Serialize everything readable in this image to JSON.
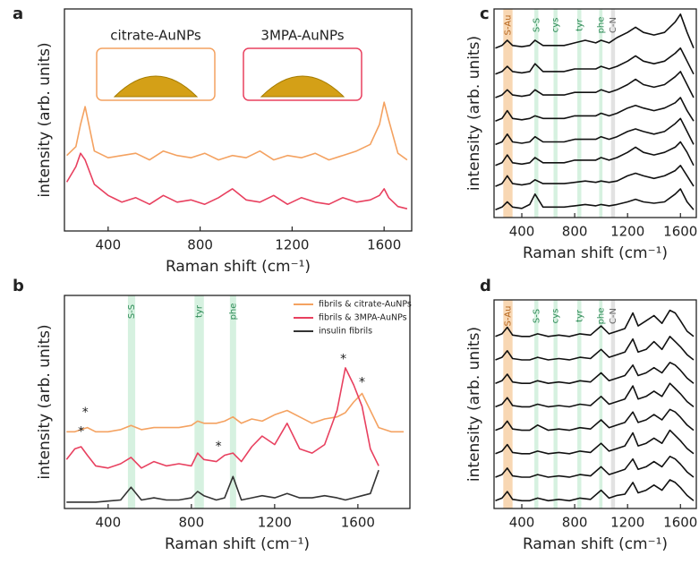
{
  "chart_data": [
    {
      "type": "line",
      "panel": "a",
      "xlabel": "Raman shift (cm⁻¹)",
      "ylabel": "intensity (arb. units)",
      "xlim": [
        210,
        1720
      ],
      "ylim": [
        0,
        10
      ],
      "xticks": [
        400,
        800,
        1200,
        1600
      ],
      "x": [
        220,
        260,
        280,
        300,
        340,
        400,
        460,
        520,
        580,
        640,
        700,
        760,
        820,
        880,
        940,
        1000,
        1060,
        1120,
        1180,
        1240,
        1300,
        1360,
        1420,
        1480,
        1540,
        1580,
        1600,
        1620,
        1660,
        1700
      ],
      "series": [
        {
          "color": "#f4a261",
          "values": [
            3.4,
            3.8,
            4.8,
            5.6,
            3.6,
            3.3,
            3.4,
            3.5,
            3.2,
            3.6,
            3.4,
            3.3,
            3.5,
            3.2,
            3.4,
            3.3,
            3.6,
            3.2,
            3.4,
            3.3,
            3.5,
            3.2,
            3.4,
            3.6,
            3.9,
            4.8,
            5.8,
            5.0,
            3.5,
            3.2
          ]
        },
        {
          "color": "#e8405f",
          "values": [
            2.2,
            2.9,
            3.5,
            3.2,
            2.1,
            1.6,
            1.3,
            1.5,
            1.2,
            1.6,
            1.3,
            1.4,
            1.2,
            1.5,
            1.9,
            1.4,
            1.3,
            1.6,
            1.2,
            1.5,
            1.3,
            1.2,
            1.5,
            1.3,
            1.4,
            1.6,
            1.9,
            1.5,
            1.1,
            1.0
          ]
        }
      ],
      "insets": [
        {
          "label": "citrate-AuNPs",
          "color": "#f4a261"
        },
        {
          "label": "3MPA-AuNPs",
          "color": "#e8405f"
        }
      ]
    },
    {
      "type": "line",
      "panel": "b",
      "xlabel": "Raman shift (cm⁻¹)",
      "ylabel": "intensity (arb. units)",
      "xlim": [
        190,
        1850
      ],
      "ylim": [
        0,
        10
      ],
      "xticks": [
        400,
        800,
        1200,
        1600
      ],
      "legend": "upper right",
      "bands": [
        {
          "label": "S-S",
          "x": [
            495,
            530
          ],
          "color": "#c8ecd6",
          "label_color": "#2e8b57"
        },
        {
          "label": "tyr",
          "x": [
            815,
            860
          ],
          "color": "#c8ecd6",
          "label_color": "#2e8b57"
        },
        {
          "label": "phe",
          "x": [
            985,
            1015
          ],
          "color": "#c8ecd6",
          "label_color": "#2e8b57"
        }
      ],
      "x": [
        200,
        240,
        270,
        300,
        340,
        400,
        460,
        510,
        560,
        620,
        680,
        740,
        800,
        830,
        860,
        920,
        960,
        1000,
        1040,
        1090,
        1140,
        1200,
        1260,
        1320,
        1380,
        1440,
        1500,
        1540,
        1580,
        1620,
        1660,
        1700,
        1760,
        1820
      ],
      "series": [
        {
          "name": "fibrils & citrate-AuNPs",
          "color": "#f4a261",
          "values": [
            3.6,
            3.6,
            3.7,
            3.8,
            3.6,
            3.6,
            3.7,
            3.9,
            3.7,
            3.8,
            3.8,
            3.8,
            3.9,
            4.1,
            4.0,
            4.0,
            4.1,
            4.3,
            4.0,
            4.2,
            4.1,
            4.4,
            4.6,
            4.3,
            4.0,
            4.2,
            4.3,
            4.5,
            5.0,
            5.4,
            4.6,
            3.8,
            3.6,
            3.6
          ]
        },
        {
          "name": "fibrils & 3MPA-AuNPs",
          "color": "#e8405f",
          "values": [
            2.3,
            2.8,
            2.9,
            2.5,
            2.0,
            1.9,
            2.1,
            2.4,
            1.9,
            2.2,
            2.0,
            2.1,
            2.0,
            2.6,
            2.3,
            2.2,
            2.5,
            2.6,
            2.2,
            2.9,
            3.4,
            3.0,
            4.0,
            2.8,
            2.6,
            3.0,
            4.6,
            6.6,
            5.8,
            4.8,
            2.8,
            2.0,
            null,
            null
          ]
        },
        {
          "name": "insulin fibrils",
          "color": "#333333",
          "values": [
            0.3,
            0.3,
            0.3,
            0.3,
            0.3,
            0.35,
            0.4,
            1.0,
            0.4,
            0.5,
            0.4,
            0.4,
            0.5,
            0.8,
            0.6,
            0.4,
            0.5,
            1.5,
            0.4,
            0.5,
            0.6,
            0.5,
            0.7,
            0.5,
            0.5,
            0.6,
            0.5,
            0.4,
            0.5,
            0.6,
            0.7,
            1.8,
            null,
            null
          ]
        }
      ],
      "annotations": [
        {
          "text": "*",
          "x": 290,
          "y": 4.5
        },
        {
          "text": "*",
          "x": 270,
          "y": 3.6
        },
        {
          "text": "*",
          "x": 930,
          "y": 2.9
        },
        {
          "text": "*",
          "x": 1530,
          "y": 7.0
        },
        {
          "text": "*",
          "x": 1620,
          "y": 5.9
        }
      ]
    },
    {
      "type": "line",
      "panel": "c",
      "xlabel": "Raman shift (cm⁻¹)",
      "ylabel": "intensity (arb. units)",
      "xlim": [
        190,
        1720
      ],
      "ylim": [
        0,
        8
      ],
      "xticks": [
        400,
        800,
        1200,
        1600
      ],
      "bands": [
        {
          "label": "S-Au",
          "x": [
            260,
            330
          ],
          "color": "#f6c99a",
          "label_color": "#b5651d"
        },
        {
          "label": "S-S",
          "x": [
            495,
            525
          ],
          "color": "#c8ecd6",
          "label_color": "#2e8b57"
        },
        {
          "label": "cys",
          "x": [
            640,
            670
          ],
          "color": "#c8ecd6",
          "label_color": "#2e8b57"
        },
        {
          "label": "tyr",
          "x": [
            820,
            850
          ],
          "color": "#c8ecd6",
          "label_color": "#2e8b57"
        },
        {
          "label": "phe",
          "x": [
            985,
            1010
          ],
          "color": "#c8ecd6",
          "label_color": "#2e8b57"
        },
        {
          "label": "C-N",
          "x": [
            1075,
            1105
          ],
          "color": "#d8d8d8",
          "label_color": "#666666"
        }
      ],
      "x": [
        200,
        250,
        290,
        330,
        400,
        460,
        500,
        560,
        640,
        720,
        800,
        880,
        960,
        1000,
        1060,
        1120,
        1200,
        1260,
        1320,
        1400,
        1480,
        1560,
        1600,
        1650,
        1700
      ],
      "series": [
        {
          "color": "#111111",
          "values": [
            0.3,
            0.4,
            0.6,
            0.4,
            0.35,
            0.5,
            0.9,
            0.4,
            0.4,
            0.4,
            0.45,
            0.5,
            0.45,
            0.5,
            0.45,
            0.5,
            0.6,
            0.7,
            0.6,
            0.55,
            0.6,
            0.9,
            1.1,
            0.6,
            0.3
          ]
        },
        {
          "color": "#111111",
          "values": [
            1.2,
            1.3,
            1.6,
            1.3,
            1.25,
            1.3,
            1.45,
            1.3,
            1.3,
            1.3,
            1.35,
            1.4,
            1.35,
            1.4,
            1.35,
            1.4,
            1.6,
            1.7,
            1.6,
            1.5,
            1.6,
            1.8,
            2.0,
            1.6,
            1.2
          ]
        },
        {
          "color": "#111111",
          "values": [
            2.0,
            2.1,
            2.4,
            2.1,
            2.05,
            2.1,
            2.3,
            2.1,
            2.1,
            2.1,
            2.2,
            2.2,
            2.2,
            2.3,
            2.2,
            2.3,
            2.5,
            2.7,
            2.5,
            2.4,
            2.5,
            2.7,
            2.9,
            2.5,
            2.0
          ]
        },
        {
          "color": "#111111",
          "values": [
            2.8,
            2.9,
            3.2,
            2.9,
            2.85,
            2.9,
            3.1,
            2.9,
            2.9,
            2.9,
            3.0,
            3.0,
            3.0,
            3.1,
            3.0,
            3.1,
            3.3,
            3.4,
            3.3,
            3.2,
            3.3,
            3.6,
            3.8,
            3.3,
            2.8
          ]
        },
        {
          "color": "#111111",
          "values": [
            3.7,
            3.8,
            4.1,
            3.8,
            3.75,
            3.8,
            3.9,
            3.8,
            3.8,
            3.8,
            3.9,
            3.9,
            3.9,
            4.0,
            3.9,
            4.0,
            4.2,
            4.3,
            4.2,
            4.1,
            4.2,
            4.4,
            4.6,
            4.1,
            3.7
          ]
        },
        {
          "color": "#111111",
          "values": [
            4.6,
            4.7,
            4.9,
            4.7,
            4.65,
            4.7,
            4.9,
            4.7,
            4.7,
            4.7,
            4.8,
            4.8,
            4.8,
            4.9,
            4.8,
            4.9,
            5.1,
            5.3,
            5.1,
            5.0,
            5.1,
            5.4,
            5.6,
            5.1,
            4.6
          ]
        },
        {
          "color": "#111111",
          "values": [
            5.5,
            5.6,
            5.8,
            5.6,
            5.55,
            5.6,
            5.9,
            5.6,
            5.6,
            5.6,
            5.7,
            5.7,
            5.7,
            5.8,
            5.7,
            5.8,
            6.0,
            6.2,
            6.0,
            5.9,
            6.0,
            6.3,
            6.5,
            6.0,
            5.5
          ]
        },
        {
          "color": "#111111",
          "values": [
            6.5,
            6.6,
            6.8,
            6.6,
            6.55,
            6.6,
            6.8,
            6.6,
            6.6,
            6.6,
            6.7,
            6.8,
            6.7,
            6.8,
            6.7,
            6.9,
            7.1,
            7.3,
            7.1,
            7.0,
            7.1,
            7.5,
            7.8,
            7.1,
            6.5
          ]
        }
      ]
    },
    {
      "type": "line",
      "panel": "d",
      "xlabel": "Raman shift (cm⁻¹)",
      "ylabel": "intensity (arb. units)",
      "xlim": [
        190,
        1720
      ],
      "ylim": [
        0,
        8
      ],
      "xticks": [
        400,
        800,
        1200,
        1600
      ],
      "bands": [
        {
          "label": "S-Au",
          "x": [
            260,
            330
          ],
          "color": "#f6c99a",
          "label_color": "#b5651d"
        },
        {
          "label": "S-S",
          "x": [
            495,
            525
          ],
          "color": "#c8ecd6",
          "label_color": "#2e8b57"
        },
        {
          "label": "cys",
          "x": [
            640,
            670
          ],
          "color": "#c8ecd6",
          "label_color": "#2e8b57"
        },
        {
          "label": "tyr",
          "x": [
            820,
            850
          ],
          "color": "#c8ecd6",
          "label_color": "#2e8b57"
        },
        {
          "label": "phe",
          "x": [
            985,
            1010
          ],
          "color": "#c8ecd6",
          "label_color": "#2e8b57"
        },
        {
          "label": "C-N",
          "x": [
            1075,
            1105
          ],
          "color": "#d8d8d8",
          "label_color": "#666666"
        }
      ],
      "x": [
        200,
        250,
        290,
        330,
        400,
        460,
        520,
        600,
        680,
        760,
        840,
        920,
        1000,
        1060,
        1120,
        1180,
        1240,
        1280,
        1340,
        1400,
        1460,
        1520,
        1560,
        1600,
        1650,
        1700
      ],
      "series": [
        {
          "color": "#111111",
          "values": [
            0.3,
            0.4,
            0.65,
            0.35,
            0.3,
            0.3,
            0.4,
            0.3,
            0.35,
            0.3,
            0.4,
            0.35,
            0.7,
            0.4,
            0.5,
            0.55,
            1.0,
            0.6,
            0.7,
            0.9,
            0.7,
            1.1,
            1.0,
            0.8,
            0.5,
            0.3
          ]
        },
        {
          "color": "#111111",
          "values": [
            1.2,
            1.3,
            1.55,
            1.25,
            1.2,
            1.2,
            1.3,
            1.2,
            1.25,
            1.2,
            1.3,
            1.25,
            1.6,
            1.3,
            1.4,
            1.5,
            1.9,
            1.5,
            1.6,
            1.8,
            1.6,
            2.0,
            1.9,
            1.7,
            1.4,
            1.2
          ]
        },
        {
          "color": "#111111",
          "values": [
            2.1,
            2.2,
            2.45,
            2.15,
            2.1,
            2.1,
            2.2,
            2.1,
            2.15,
            2.1,
            2.2,
            2.15,
            2.5,
            2.2,
            2.3,
            2.4,
            2.9,
            2.4,
            2.5,
            2.7,
            2.5,
            3.0,
            2.8,
            2.6,
            2.3,
            2.1
          ]
        },
        {
          "color": "#111111",
          "values": [
            3.0,
            3.1,
            3.35,
            3.05,
            3.0,
            3.0,
            3.2,
            3.0,
            3.05,
            3.0,
            3.1,
            3.05,
            3.4,
            3.1,
            3.2,
            3.3,
            3.7,
            3.3,
            3.4,
            3.6,
            3.4,
            3.8,
            3.7,
            3.5,
            3.2,
            3.0
          ]
        },
        {
          "color": "#111111",
          "values": [
            3.9,
            4.0,
            4.25,
            3.95,
            3.9,
            3.9,
            4.0,
            3.9,
            3.95,
            3.9,
            4.0,
            3.95,
            4.3,
            4.0,
            4.1,
            4.2,
            4.7,
            4.2,
            4.3,
            4.5,
            4.3,
            4.8,
            4.6,
            4.4,
            4.1,
            3.9
          ]
        },
        {
          "color": "#111111",
          "values": [
            4.8,
            4.9,
            5.15,
            4.85,
            4.8,
            4.8,
            4.9,
            4.8,
            4.85,
            4.8,
            4.9,
            4.85,
            5.2,
            4.9,
            5.0,
            5.1,
            5.5,
            5.1,
            5.2,
            5.4,
            5.2,
            5.6,
            5.5,
            5.3,
            5.0,
            4.8
          ]
        },
        {
          "color": "#111111",
          "values": [
            5.7,
            5.8,
            6.05,
            5.75,
            5.7,
            5.7,
            5.8,
            5.7,
            5.75,
            5.7,
            5.8,
            5.75,
            6.1,
            5.8,
            5.9,
            6.0,
            6.5,
            6.0,
            6.1,
            6.4,
            6.1,
            6.6,
            6.4,
            6.2,
            5.9,
            5.7
          ]
        },
        {
          "color": "#111111",
          "values": [
            6.6,
            6.7,
            6.95,
            6.65,
            6.6,
            6.6,
            6.7,
            6.6,
            6.65,
            6.6,
            6.7,
            6.65,
            7.0,
            6.7,
            6.8,
            6.9,
            7.5,
            7.0,
            7.2,
            7.4,
            7.1,
            7.6,
            7.5,
            7.2,
            6.8,
            6.6
          ]
        }
      ]
    }
  ]
}
